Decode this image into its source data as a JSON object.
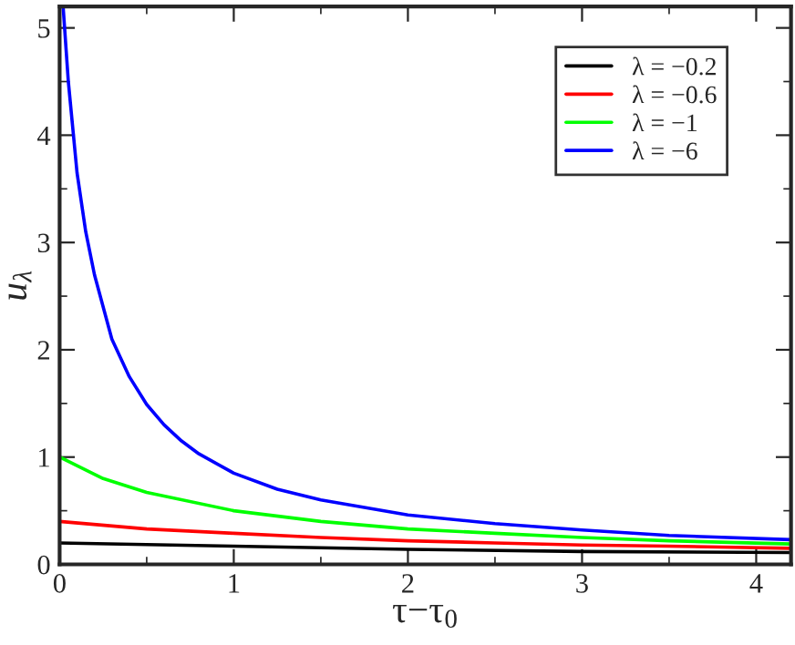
{
  "chart_data": {
    "type": "line",
    "xlabel": "τ−τ$_{0}$",
    "ylabel": "u$_{λ}$",
    "xlim": [
      0,
      4.2
    ],
    "ylim": [
      0,
      5.2
    ],
    "xticks": [
      0,
      {
        "value": 0.5,
        "label": null
      },
      1,
      {
        "value": 1.5,
        "label": null
      },
      2,
      {
        "value": 2.5,
        "label": null
      },
      3,
      {
        "value": 3.5,
        "label": null
      },
      4
    ],
    "yticks": [
      0,
      {
        "value": 0.5,
        "label": null
      },
      1,
      {
        "value": 1.5,
        "label": null
      },
      2,
      {
        "value": 2.5,
        "label": null
      },
      3,
      {
        "value": 3.5,
        "label": null
      },
      4,
      {
        "value": 4.5,
        "label": null
      },
      5
    ],
    "grid": false,
    "legend": "top right",
    "marker": "none",
    "line_style": "solid",
    "series": [
      {
        "name": "λ = −0.2",
        "color": "#000000",
        "x": [
          0,
          1,
          2,
          3,
          4.2
        ],
        "values": [
          0.2,
          0.17,
          0.14,
          0.12,
          0.11
        ]
      },
      {
        "name": "λ = −0.6",
        "color": "#ff0000",
        "x": [
          0,
          0.5,
          1,
          1.5,
          2,
          2.5,
          3,
          3.5,
          4.2
        ],
        "values": [
          0.4,
          0.33,
          0.29,
          0.25,
          0.22,
          0.2,
          0.18,
          0.17,
          0.15
        ]
      },
      {
        "name": "λ = −1",
        "color": "#00ff00",
        "x": [
          0,
          0.25,
          0.5,
          1,
          1.5,
          2,
          2.5,
          3,
          3.5,
          4.2
        ],
        "values": [
          1.0,
          0.8,
          0.67,
          0.5,
          0.4,
          0.33,
          0.29,
          0.25,
          0.22,
          0.19
        ]
      },
      {
        "name": "λ = −6",
        "color": "#0000ff",
        "x": [
          0.02,
          0.05,
          0.1,
          0.15,
          0.2,
          0.3,
          0.4,
          0.5,
          0.6,
          0.7,
          0.8,
          1.0,
          1.25,
          1.5,
          2.0,
          2.5,
          3.0,
          3.5,
          4.2
        ],
        "values": [
          5.2,
          4.5,
          3.65,
          3.1,
          2.7,
          2.1,
          1.75,
          1.49,
          1.3,
          1.15,
          1.03,
          0.85,
          0.7,
          0.6,
          0.46,
          0.38,
          0.32,
          0.27,
          0.23
        ]
      }
    ]
  }
}
